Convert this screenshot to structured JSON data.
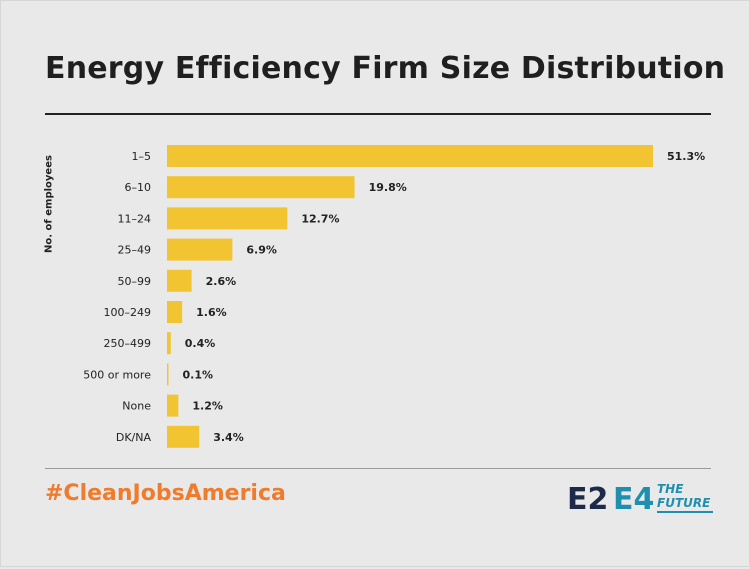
{
  "title": "Energy Efficiency Firm Size Distribution",
  "hashtag": "#CleanJobsAmerica",
  "logos": {
    "e2": "E2",
    "e4": "E4",
    "e4_the": "THE",
    "e4_future": "FUTURE"
  },
  "colors": {
    "bar": "#f2c432",
    "text": "#222222",
    "hashtag": "#ef7b2d",
    "logo_dark": "#1d2a4a",
    "logo_teal": "#1f8fb0"
  },
  "chart_data": {
    "type": "bar",
    "orientation": "horizontal",
    "ylabel": "No. of employees",
    "categories": [
      "1–5",
      "6–10",
      "11–24",
      "25–49",
      "50–99",
      "100–249",
      "250–499",
      "500 or more",
      "None",
      "DK/NA"
    ],
    "values": [
      51.3,
      19.8,
      12.7,
      6.9,
      2.6,
      1.6,
      0.4,
      0.1,
      1.2,
      3.4
    ],
    "value_labels": [
      "51.3%",
      "19.8%",
      "12.7%",
      "6.9%",
      "2.6%",
      "1.6%",
      "0.4%",
      "0.1%",
      "1.2%",
      "3.4%"
    ],
    "xlim": [
      0,
      51.3
    ],
    "grid": false,
    "legend": "none"
  }
}
